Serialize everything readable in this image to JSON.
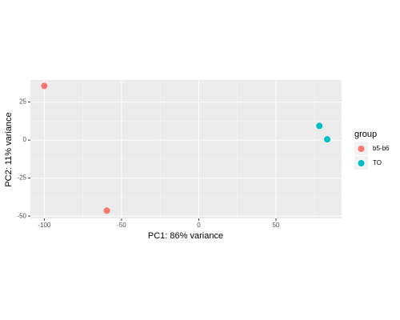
{
  "chart_data": {
    "type": "scatter",
    "x_label": "PC1: 86% variance",
    "y_label": "PC2: 11% variance",
    "legend_title": "group",
    "legend_position": "right",
    "grid": true,
    "xlim": [
      -109,
      92.5
    ],
    "ylim": [
      -51.5,
      39.5
    ],
    "xticks": [
      -100,
      -50,
      0,
      50
    ],
    "yticks": [
      -50,
      -25,
      0,
      25
    ],
    "xminor": [
      -75,
      -25,
      25,
      75
    ],
    "yminor": [
      -37.5,
      -12.5,
      12.5,
      37.5
    ],
    "series": [
      {
        "name": "b5-b6",
        "color": "#F8766D",
        "x": [
          -100,
          -59.5
        ],
        "values": [
          35.6,
          -46.4
        ]
      },
      {
        "name": "TO",
        "color": "#00BFC4",
        "x": [
          78.1,
          83.2
        ],
        "values": [
          9.3,
          0.5
        ]
      }
    ]
  }
}
